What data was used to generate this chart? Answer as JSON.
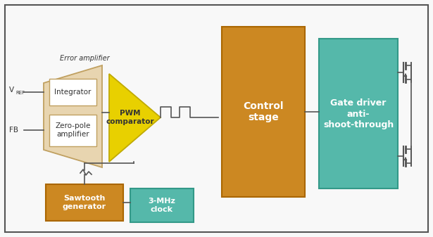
{
  "bg_color": "#f8f8f8",
  "border_color": "#aaaaaa",
  "colors": {
    "orange": "#cc8822",
    "teal": "#55b8aa",
    "beige_fill": "#e8d5b0",
    "beige_border": "#c0a060",
    "yellow": "#e8d000",
    "yellow_border": "#c0aa00",
    "white": "#ffffff",
    "dark_gray": "#555555",
    "text_dark": "#333333",
    "text_white": "#ffffff",
    "ctrl_orange_border": "#aa6600",
    "teal_border": "#339988"
  },
  "error_amp_label": "Error amplifier",
  "integrator_label": "Integrator",
  "zeropole_label": "Zero-pole\namplifier",
  "pwm_label": "PWM\ncomparator",
  "control_label": "Control\nstage",
  "gate_label": "Gate driver\nanti-\nshoot-through",
  "sawtooth_label": "Sawtooth\ngenerator",
  "clock_label": "3-MHz\nclock",
  "vref_label": "V",
  "vref_sub": "REF",
  "fb_label": "FB"
}
